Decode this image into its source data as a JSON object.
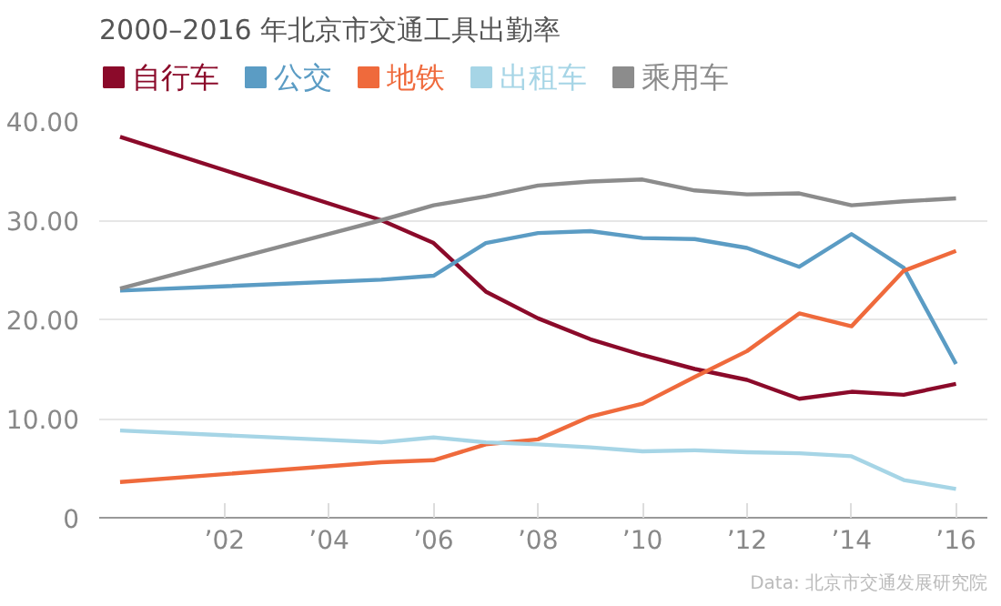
{
  "chart_data": {
    "type": "line",
    "title": "2000–2016 年北京市交通工具出勤率",
    "x": [
      2000,
      2005,
      2006,
      2007,
      2008,
      2009,
      2010,
      2011,
      2012,
      2013,
      2014,
      2015,
      2016
    ],
    "series": [
      {
        "name": "自行车",
        "color": "#8b0a2a",
        "values": [
          38.4,
          30.0,
          27.7,
          22.8,
          20.1,
          18.0,
          16.4,
          15.0,
          13.9,
          12.0,
          12.7,
          12.4,
          13.5
        ]
      },
      {
        "name": "公交",
        "color": "#5b9cc4",
        "values": [
          22.9,
          24.0,
          24.4,
          27.7,
          28.7,
          28.9,
          28.2,
          28.1,
          27.2,
          25.3,
          28.6,
          25.2,
          15.5
        ]
      },
      {
        "name": "地铁",
        "color": "#ef6a3c",
        "values": [
          3.6,
          5.6,
          5.8,
          7.4,
          7.9,
          10.2,
          11.5,
          14.2,
          16.8,
          20.6,
          19.3,
          24.9,
          26.9
        ]
      },
      {
        "name": "出租车",
        "color": "#a6d5e6",
        "values": [
          8.8,
          7.6,
          8.1,
          7.6,
          7.4,
          7.1,
          6.7,
          6.8,
          6.6,
          6.5,
          6.2,
          3.8,
          2.9
        ]
      },
      {
        "name": "乘用车",
        "color": "#8c8c8c",
        "values": [
          23.1,
          30.0,
          31.5,
          32.4,
          33.5,
          33.9,
          34.1,
          33.0,
          32.6,
          32.7,
          31.5,
          31.9,
          32.2
        ]
      }
    ],
    "xlim": [
      1999.6,
      2016.6
    ],
    "ylim": [
      0,
      40
    ],
    "xticks": [
      {
        "value": 2002,
        "label": "’02"
      },
      {
        "value": 2004,
        "label": "’04"
      },
      {
        "value": 2006,
        "label": "’06"
      },
      {
        "value": 2008,
        "label": "’08"
      },
      {
        "value": 2010,
        "label": "’10"
      },
      {
        "value": 2012,
        "label": "’12"
      },
      {
        "value": 2014,
        "label": "’14"
      },
      {
        "value": 2016,
        "label": "’16"
      }
    ],
    "yticks": [
      0,
      {
        "value": 10,
        "label": "10.00"
      },
      {
        "value": 20,
        "label": "20.00"
      },
      {
        "value": 30,
        "label": "30.00"
      },
      {
        "value": 40,
        "label": "40.00"
      }
    ],
    "grid": "y",
    "legend": "top",
    "marker": "none",
    "line_style": "solid",
    "annotations": [
      "Data: 北京市交通发展研究院"
    ]
  }
}
